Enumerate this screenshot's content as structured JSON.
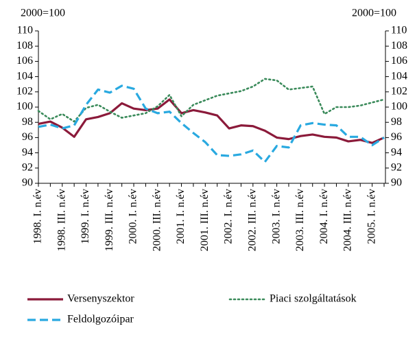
{
  "chart_data": {
    "type": "line",
    "y_label": "2000=100",
    "y2_label": "2000=100",
    "categories": [
      "1998. I. n.év",
      null,
      "1998. III. n.év",
      null,
      "1999. I. n.év",
      null,
      "1999. III. n.év",
      null,
      "2000. I. n.év",
      null,
      "2000. III. n.év",
      null,
      "2001. I. n.év",
      null,
      "2001. III. n.év",
      null,
      "2002. I. n.év",
      null,
      "2002. III. n.év",
      null,
      "2003. I. n.év",
      null,
      "2003. III. n.év",
      null,
      "2004. I. n.év",
      null,
      "2004. III. n.év",
      null,
      "2005. I. n.év",
      null
    ],
    "series": [
      {
        "name": "Versenyszektor",
        "color": "#8b1a3a",
        "style": "solid",
        "values": [
          97.8,
          98.1,
          97.3,
          96.1,
          98.4,
          98.7,
          99.2,
          100.5,
          99.8,
          99.6,
          99.8,
          101.0,
          99.2,
          99.6,
          99.3,
          98.9,
          97.2,
          97.6,
          97.5,
          96.9,
          96.0,
          95.8,
          96.2,
          96.4,
          96.1,
          96.0,
          95.5,
          95.7,
          95.3,
          96.0
        ]
      },
      {
        "name": "Piaci szolgáltatások",
        "color": "#3a8a5a",
        "style": "dotted",
        "values": [
          99.5,
          98.4,
          99.1,
          98.1,
          99.9,
          100.3,
          99.4,
          98.6,
          98.9,
          99.2,
          100.1,
          101.6,
          98.8,
          100.3,
          100.9,
          101.5,
          101.8,
          102.1,
          102.7,
          103.7,
          103.5,
          102.3,
          102.5,
          102.7,
          99.1,
          100.0,
          100.0,
          100.2,
          100.6,
          101.0
        ]
      },
      {
        "name": "Feldolgozóipar",
        "color": "#29a9e0",
        "style": "dashed",
        "values": [
          97.4,
          97.7,
          97.2,
          97.6,
          100.3,
          102.3,
          101.9,
          102.8,
          102.4,
          99.8,
          99.2,
          99.4,
          97.9,
          96.6,
          95.4,
          93.7,
          93.6,
          93.8,
          94.3,
          92.8,
          94.9,
          94.7,
          97.6,
          97.9,
          97.7,
          97.6,
          96.1,
          96.1,
          95.0,
          96.0
        ]
      }
    ],
    "ylim": [
      90,
      110
    ],
    "yticks": [
      90,
      92,
      94,
      96,
      98,
      100,
      102,
      104,
      106,
      108,
      110
    ],
    "y2lim": [
      90,
      110
    ],
    "y2ticks": [
      90,
      92,
      94,
      96,
      98,
      100,
      102,
      104,
      106,
      108,
      110
    ]
  }
}
